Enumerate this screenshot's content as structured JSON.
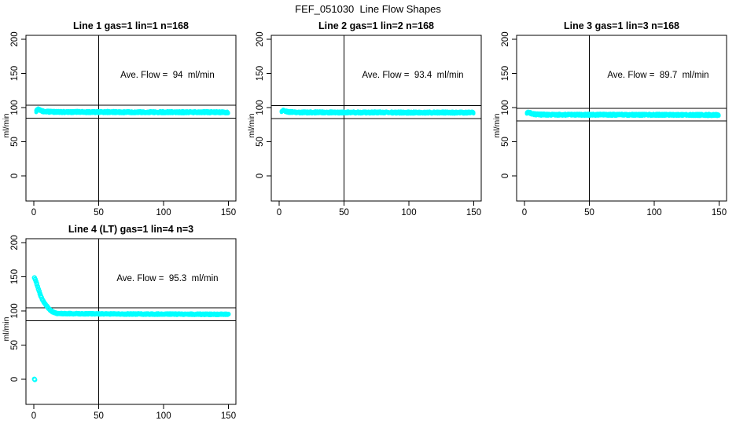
{
  "title": "FEF_051030  Line Flow Shapes",
  "colors": {
    "points": "#00ffff",
    "axis": "#000000",
    "background": "#ffffff"
  },
  "chart_data": [
    {
      "type": "scatter",
      "name": "line-1",
      "title": "Line 1 gas=1 lin=1 n=168",
      "annotation": "Ave. Flow =  94  ml/min",
      "ave_flow_ml_min": 94,
      "n_runs": 168,
      "ylabel": "ml/min",
      "x_tick_values": [
        0,
        50,
        100,
        150
      ],
      "y_tick_values": [
        0,
        50,
        100,
        150,
        200
      ],
      "xlim": [
        -6,
        156
      ],
      "ylim": [
        -37,
        206
      ],
      "grid": false,
      "vline_x": 50,
      "ref_lines_y": [
        103.4,
        84.6
      ],
      "band": {
        "x_start": 1.8,
        "x_end": 150,
        "halfwidth": 1.8,
        "step": 0.4,
        "per_step": 3,
        "point_radius": 1.7,
        "profile": [
          [
            1.8,
            94.5
          ],
          [
            2.6,
            96.8
          ],
          [
            3.5,
            97.2
          ],
          [
            4.5,
            96.3
          ],
          [
            5.5,
            95.3
          ],
          [
            7,
            94.5
          ],
          [
            9,
            94.0
          ],
          [
            12,
            93.8
          ],
          [
            16,
            93.6
          ],
          [
            22,
            93.5
          ],
          [
            30,
            93.5
          ],
          [
            40,
            93.4
          ],
          [
            55,
            93.4
          ],
          [
            70,
            93.3
          ],
          [
            85,
            93.3
          ],
          [
            100,
            93.3
          ],
          [
            115,
            93.2
          ],
          [
            130,
            93.2
          ],
          [
            150,
            93.1
          ]
        ]
      },
      "outlier_points": []
    },
    {
      "type": "scatter",
      "name": "line-2",
      "title": "Line 2 gas=1 lin=2 n=168",
      "annotation": "Ave. Flow =  93.4  ml/min",
      "ave_flow_ml_min": 93.4,
      "n_runs": 168,
      "ylabel": "ml/min",
      "x_tick_values": [
        0,
        50,
        100,
        150
      ],
      "y_tick_values": [
        0,
        50,
        100,
        150,
        200
      ],
      "xlim": [
        -6,
        156
      ],
      "ylim": [
        -37,
        206
      ],
      "grid": false,
      "vline_x": 50,
      "ref_lines_y": [
        102.7,
        84.1
      ],
      "band": {
        "x_start": 1.8,
        "x_end": 150,
        "halfwidth": 1.8,
        "step": 0.4,
        "per_step": 3,
        "point_radius": 1.7,
        "profile": [
          [
            1.8,
            95.0
          ],
          [
            2.6,
            96.5
          ],
          [
            3.5,
            96.2
          ],
          [
            4.5,
            95.2
          ],
          [
            5.5,
            94.4
          ],
          [
            7,
            93.8
          ],
          [
            9,
            93.4
          ],
          [
            12,
            93.1
          ],
          [
            16,
            93.0
          ],
          [
            22,
            92.9
          ],
          [
            30,
            92.9
          ],
          [
            45,
            92.8
          ],
          [
            60,
            92.8
          ],
          [
            80,
            92.8
          ],
          [
            100,
            92.7
          ],
          [
            120,
            92.7
          ],
          [
            150,
            92.6
          ]
        ]
      },
      "outlier_points": []
    },
    {
      "type": "scatter",
      "name": "line-3",
      "title": "Line 3 gas=1 lin=3 n=168",
      "annotation": "Ave. Flow =  89.7  ml/min",
      "ave_flow_ml_min": 89.7,
      "n_runs": 168,
      "ylabel": "ml/min",
      "x_tick_values": [
        0,
        50,
        100,
        150
      ],
      "y_tick_values": [
        0,
        50,
        100,
        150,
        200
      ],
      "xlim": [
        -6,
        156
      ],
      "ylim": [
        -37,
        206
      ],
      "grid": false,
      "vline_x": 50,
      "ref_lines_y": [
        98.7,
        80.7
      ],
      "band": {
        "x_start": 1.8,
        "x_end": 150,
        "halfwidth": 1.8,
        "step": 0.4,
        "per_step": 3,
        "point_radius": 1.7,
        "profile": [
          [
            1.8,
            91.5
          ],
          [
            2.6,
            93.2
          ],
          [
            3.5,
            93.0
          ],
          [
            4.5,
            92.0
          ],
          [
            5.5,
            91.2
          ],
          [
            7,
            90.5
          ],
          [
            9,
            90.0
          ],
          [
            12,
            89.8
          ],
          [
            16,
            89.7
          ],
          [
            22,
            89.6
          ],
          [
            30,
            89.6
          ],
          [
            45,
            89.5
          ],
          [
            60,
            89.5
          ],
          [
            80,
            89.4
          ],
          [
            100,
            89.4
          ],
          [
            120,
            89.3
          ],
          [
            150,
            89.2
          ]
        ]
      },
      "outlier_points": []
    },
    {
      "type": "scatter",
      "name": "line-4-lt",
      "title": "Line 4 (LT) gas=1 lin=4 n=3",
      "annotation": "Ave. Flow =  95.3  ml/min",
      "ave_flow_ml_min": 95.3,
      "n_runs": 3,
      "ylabel": "ml/min",
      "x_tick_values": [
        0,
        50,
        100,
        150
      ],
      "y_tick_values": [
        0,
        50,
        100,
        150,
        200
      ],
      "xlim": [
        -6,
        156
      ],
      "ylim": [
        -37,
        206
      ],
      "grid": false,
      "vline_x": 50,
      "ref_lines_y": [
        104.8,
        85.8
      ],
      "band": {
        "x_start": 0.5,
        "x_end": 150,
        "halfwidth": 0.7,
        "step": 0.6,
        "per_step": 2,
        "point_radius": 2.4,
        "profile": [
          [
            0.5,
            149
          ],
          [
            1.8,
            142.5
          ],
          [
            3.5,
            132
          ],
          [
            5.5,
            120.7
          ],
          [
            7.5,
            113.8
          ],
          [
            10,
            107
          ],
          [
            12.3,
            102
          ],
          [
            14.7,
            98.2
          ],
          [
            18,
            96.4
          ],
          [
            25,
            96.1
          ],
          [
            40,
            95.8
          ],
          [
            60,
            95.6
          ],
          [
            90,
            95.4
          ],
          [
            120,
            95.2
          ],
          [
            150,
            95.0
          ]
        ]
      },
      "outlier_points": [
        [
          0.4,
          0.3
        ],
        [
          0.8,
          -0.8
        ]
      ]
    }
  ]
}
